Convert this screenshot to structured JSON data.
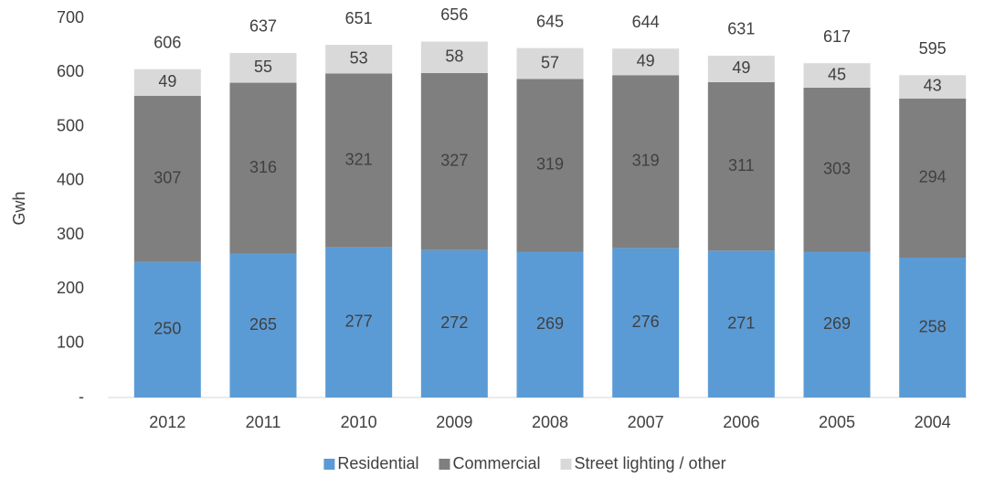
{
  "chart_data": {
    "type": "stacked-bar",
    "y_axis_label": "Gwh",
    "categories": [
      "2012",
      "2011",
      "2010",
      "2009",
      "2008",
      "2007",
      "2006",
      "2005",
      "2004"
    ],
    "series": [
      {
        "name": "Residential",
        "color": "#5b9bd5",
        "values": [
          250,
          265,
          277,
          272,
          269,
          276,
          271,
          269,
          258
        ]
      },
      {
        "name": "Commercial",
        "color": "#7f7f7f",
        "values": [
          307,
          316,
          321,
          327,
          319,
          319,
          311,
          303,
          294
        ]
      },
      {
        "name": "Street lighting / other",
        "color": "#d9d9d9",
        "values": [
          49,
          55,
          53,
          58,
          57,
          49,
          49,
          45,
          43
        ]
      }
    ],
    "totals": [
      606,
      637,
      651,
      656,
      645,
      644,
      631,
      617,
      595
    ],
    "ylim": [
      0,
      700
    ],
    "yticks": [
      {
        "value": 0,
        "label": "-"
      },
      100,
      200,
      300,
      400,
      500,
      600,
      700
    ],
    "legend": "bottom"
  }
}
